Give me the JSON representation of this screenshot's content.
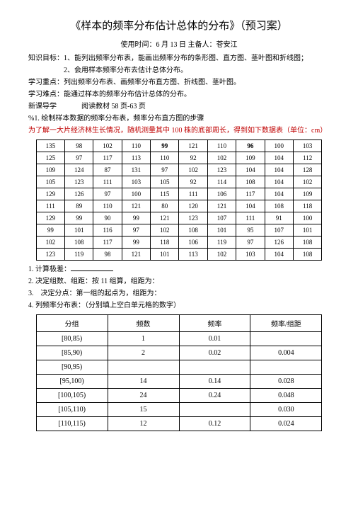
{
  "title": "《样本的频率分布估计总体的分布》（预习案）",
  "subtitle": "使用时间：6 月 13 日 主备人：苍安江",
  "lines": {
    "l1": "知识目标：1、能列出频率分布表，能画出频率分布的条形图、直方图、茎叶图和折线图；",
    "l2": "2、会用样本频率分布去估计总体分布。",
    "l3": "学习重点：列出频率分布表、画频率分布直方图、折线图、茎叶图。",
    "l4": "学习难点：能通过样本的频率分布估计总体的分布。",
    "l5_left": "新课导学",
    "l5_right": "阅读教材 58 页-63 页",
    "l6": "%1. 绘制样本数据的频率分布表，频率分布直方图的步骤",
    "l7": "为了解一大片经济林生长情况，随机测量其中 100 株的底部周长，得到如下数据表（单位：cm）"
  },
  "data_table": {
    "rows": [
      [
        "135",
        "98",
        "102",
        "110",
        "99",
        "121",
        "110",
        "96",
        "100",
        "103"
      ],
      [
        "125",
        "97",
        "117",
        "113",
        "110",
        "92",
        "102",
        "109",
        "104",
        "112"
      ],
      [
        "109",
        "124",
        "87",
        "131",
        "97",
        "102",
        "123",
        "104",
        "104",
        "128"
      ],
      [
        "105",
        "123",
        "111",
        "103",
        "105",
        "92",
        "114",
        "108",
        "104",
        "102"
      ],
      [
        "129",
        "126",
        "97",
        "100",
        "115",
        "111",
        "106",
        "117",
        "104",
        "109"
      ],
      [
        "111",
        "89",
        "110",
        "121",
        "80",
        "120",
        "121",
        "104",
        "108",
        "118"
      ],
      [
        "129",
        "99",
        "90",
        "99",
        "121",
        "123",
        "107",
        "111",
        "91",
        "100"
      ],
      [
        "99",
        "101",
        "116",
        "97",
        "102",
        "108",
        "101",
        "95",
        "107",
        "101"
      ],
      [
        "102",
        "108",
        "117",
        "99",
        "118",
        "106",
        "119",
        "97",
        "126",
        "108"
      ],
      [
        "123",
        "119",
        "98",
        "121",
        "101",
        "113",
        "102",
        "103",
        "104",
        "108"
      ]
    ],
    "bold_cells": [
      "0,4",
      "0,7"
    ]
  },
  "numbered": {
    "n1": "1. 计算极差：",
    "n2": "2. 决定组数、组距：按 11 组算，组距为：",
    "n3": "3.　决定分点：第一组的起点为，组距为：",
    "n4": "4. 列频率分布表：（分别填上空白单元格的数字）"
  },
  "freq_table": {
    "headers": [
      "分组",
      "频数",
      "频率",
      "频率/组距"
    ],
    "rows": [
      {
        "group": "[80,85)",
        "count": "1",
        "freq": "0.01",
        "density": ""
      },
      {
        "group": "[85,90)",
        "count": "2",
        "freq": "0.02",
        "density": "0.004"
      },
      {
        "group": "[90,95)",
        "count": "",
        "freq": "",
        "density": ""
      },
      {
        "group": "[95,100)",
        "count": "14",
        "freq": "0.14",
        "density": "0.028"
      },
      {
        "group": "[100,105)",
        "count": "24",
        "freq": "0.24",
        "density": "0.048"
      },
      {
        "group": "[105,110)",
        "count": "15",
        "freq": "",
        "density": "0.030"
      },
      {
        "group": "[110,115)",
        "count": "12",
        "freq": "0.12",
        "density": "0.024"
      }
    ]
  }
}
